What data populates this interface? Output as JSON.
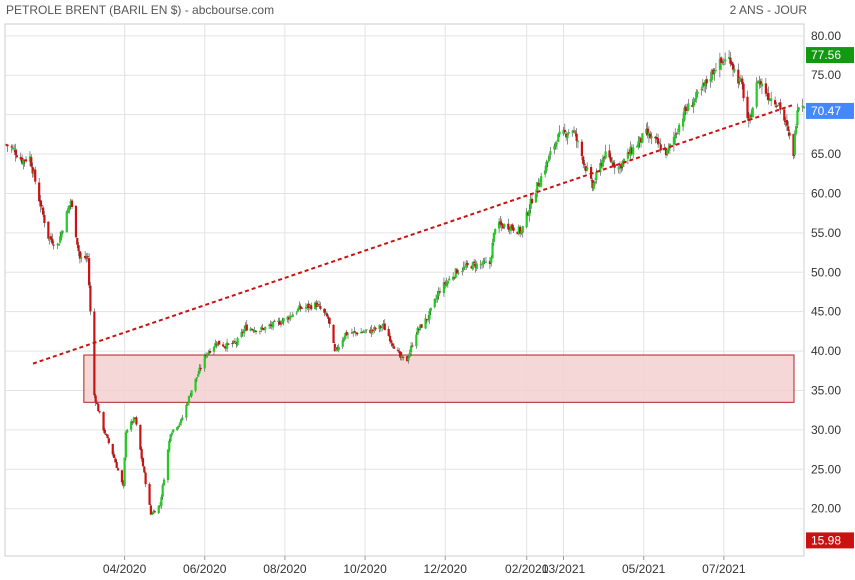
{
  "header": {
    "title": "PETROLE BRENT (BARIL EN $) - abcbourse.com",
    "period": "2 ANS - JOUR"
  },
  "chart_data": {
    "type": "candlestick",
    "title": "PETROLE BRENT (BARIL EN $) - abcbourse.com",
    "xlabel": "",
    "ylabel": "",
    "ylim": [
      14,
      81.5
    ],
    "yticks": [
      20,
      25,
      30,
      35,
      40,
      45,
      50,
      55,
      60,
      65,
      70,
      75,
      80
    ],
    "ytick_labels": [
      "20.00",
      "25.00",
      "30.00",
      "35.00",
      "40.00",
      "45.00",
      "50.00",
      "55.00",
      "60.00",
      "65.00",
      "70.00",
      "75.00",
      "80.00"
    ],
    "xticks": [
      "04/2020",
      "06/2020",
      "08/2020",
      "10/2020",
      "12/2020",
      "02/2021",
      "03/2021",
      "05/2021",
      "07/2021"
    ],
    "x_start": "2020-01-01",
    "x_end": "2021-08-31",
    "grid": true,
    "colors": {
      "up": "#22cc22",
      "down": "#cc1111",
      "trend": "#cc1111",
      "zone_fill": "#f5d0d0",
      "zone_stroke": "#b22222"
    },
    "series": [
      {
        "name": "Brent",
        "points": [
          [
            "2020-01-02",
            66.2
          ],
          [
            "2020-01-08",
            65.5
          ],
          [
            "2020-01-14",
            64.2
          ],
          [
            "2020-01-20",
            64.6
          ],
          [
            "2020-01-27",
            59.3
          ],
          [
            "2020-02-03",
            54.5
          ],
          [
            "2020-02-10",
            53.4
          ],
          [
            "2020-02-20",
            59.1
          ],
          [
            "2020-02-27",
            51.7
          ],
          [
            "2020-03-04",
            51.9
          ],
          [
            "2020-03-09",
            34.4
          ],
          [
            "2020-03-16",
            30.1
          ],
          [
            "2020-03-23",
            27.0
          ],
          [
            "2020-03-31",
            22.7
          ],
          [
            "2020-04-02",
            29.9
          ],
          [
            "2020-04-09",
            31.5
          ],
          [
            "2020-04-21",
            19.3
          ],
          [
            "2020-04-28",
            20.5
          ],
          [
            "2020-05-06",
            29.7
          ],
          [
            "2020-05-14",
            31.1
          ],
          [
            "2020-05-22",
            35.1
          ],
          [
            "2020-06-02",
            39.6
          ],
          [
            "2020-06-10",
            41.1
          ],
          [
            "2020-06-17",
            40.7
          ],
          [
            "2020-06-25",
            41.0
          ],
          [
            "2020-07-02",
            43.0
          ],
          [
            "2020-07-13",
            42.7
          ],
          [
            "2020-07-23",
            43.3
          ],
          [
            "2020-08-03",
            44.2
          ],
          [
            "2020-08-12",
            45.4
          ],
          [
            "2020-08-25",
            45.9
          ],
          [
            "2020-09-03",
            44.1
          ],
          [
            "2020-09-08",
            39.8
          ],
          [
            "2020-09-16",
            42.2
          ],
          [
            "2020-09-28",
            42.4
          ],
          [
            "2020-10-06",
            42.6
          ],
          [
            "2020-10-15",
            43.2
          ],
          [
            "2020-10-28",
            39.1
          ],
          [
            "2020-11-02",
            38.9
          ],
          [
            "2020-11-09",
            42.4
          ],
          [
            "2020-11-18",
            44.3
          ],
          [
            "2020-11-27",
            47.8
          ],
          [
            "2020-12-10",
            50.2
          ],
          [
            "2020-12-21",
            50.9
          ],
          [
            "2021-01-04",
            51.1
          ],
          [
            "2021-01-08",
            55.9
          ],
          [
            "2021-01-19",
            55.9
          ],
          [
            "2021-01-28",
            55.1
          ],
          [
            "2021-02-05",
            59.3
          ],
          [
            "2021-02-15",
            63.3
          ],
          [
            "2021-02-24",
            67.0
          ],
          [
            "2021-03-08",
            68.2
          ],
          [
            "2021-03-18",
            63.3
          ],
          [
            "2021-03-23",
            60.8
          ],
          [
            "2021-04-01",
            64.9
          ],
          [
            "2021-04-12",
            63.3
          ],
          [
            "2021-04-21",
            65.3
          ],
          [
            "2021-05-03",
            67.6
          ],
          [
            "2021-05-19",
            65.1
          ],
          [
            "2021-06-01",
            70.3
          ],
          [
            "2021-06-14",
            73.0
          ],
          [
            "2021-06-25",
            76.2
          ],
          [
            "2021-07-06",
            77.2
          ],
          [
            "2021-07-09",
            75.6
          ],
          [
            "2021-07-15",
            73.5
          ],
          [
            "2021-07-20",
            68.6
          ],
          [
            "2021-07-27",
            74.5
          ],
          [
            "2021-08-04",
            72.4
          ],
          [
            "2021-08-12",
            71.4
          ],
          [
            "2021-08-18",
            68.2
          ],
          [
            "2021-08-23",
            65.2
          ],
          [
            "2021-08-26",
            71.2
          ],
          [
            "2021-08-31",
            71.6
          ]
        ]
      }
    ],
    "trendline": {
      "start": [
        "2020-01-01",
        37.2
      ],
      "end": [
        "2021-08-31",
        71.7
      ]
    },
    "support_zone": {
      "x_start": "2020-03-01",
      "x_end": "2021-08-31",
      "y_low": 33.5,
      "y_high": 39.5
    },
    "badges": [
      {
        "label": "77.56",
        "value": 77.56,
        "color": "#119911"
      },
      {
        "label": "70.47",
        "value": 70.47,
        "color": "#4488ff"
      },
      {
        "label": "15.98",
        "value": 15.98,
        "color": "#cc1111"
      }
    ]
  }
}
